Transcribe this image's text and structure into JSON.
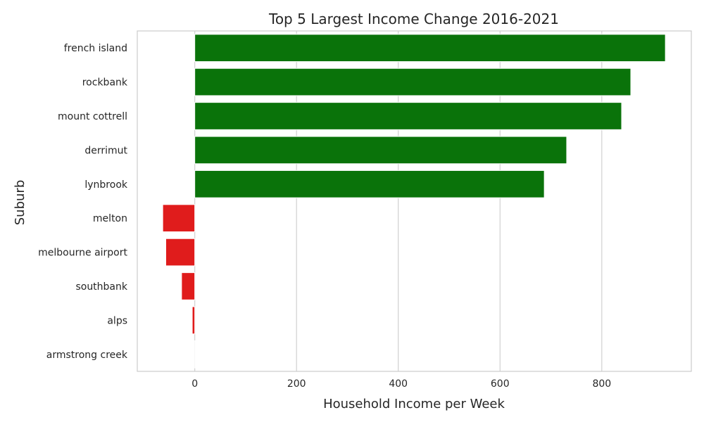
{
  "chart_data": {
    "type": "bar",
    "orientation": "horizontal",
    "title": "Top 5 Largest Income Change 2016-2021",
    "xlabel": "Household Income per Week",
    "ylabel": "Suburb",
    "categories": [
      "french island",
      "rockbank",
      "mount cottrell",
      "derrimut",
      "lynbrook",
      "melton",
      "melbourne airport",
      "southbank",
      "alps",
      "armstrong creek"
    ],
    "values": [
      925,
      857,
      839,
      731,
      687,
      -63,
      -57,
      -26,
      -5,
      0
    ],
    "xlim": [
      -113,
      976
    ],
    "xticks": [
      0,
      200,
      400,
      600,
      800
    ],
    "grid": "vertical",
    "colors": {
      "positive": "#0a730a",
      "negative": "#e01c1c",
      "grid": "#d0d0d0",
      "frame": "#cccccc"
    }
  }
}
